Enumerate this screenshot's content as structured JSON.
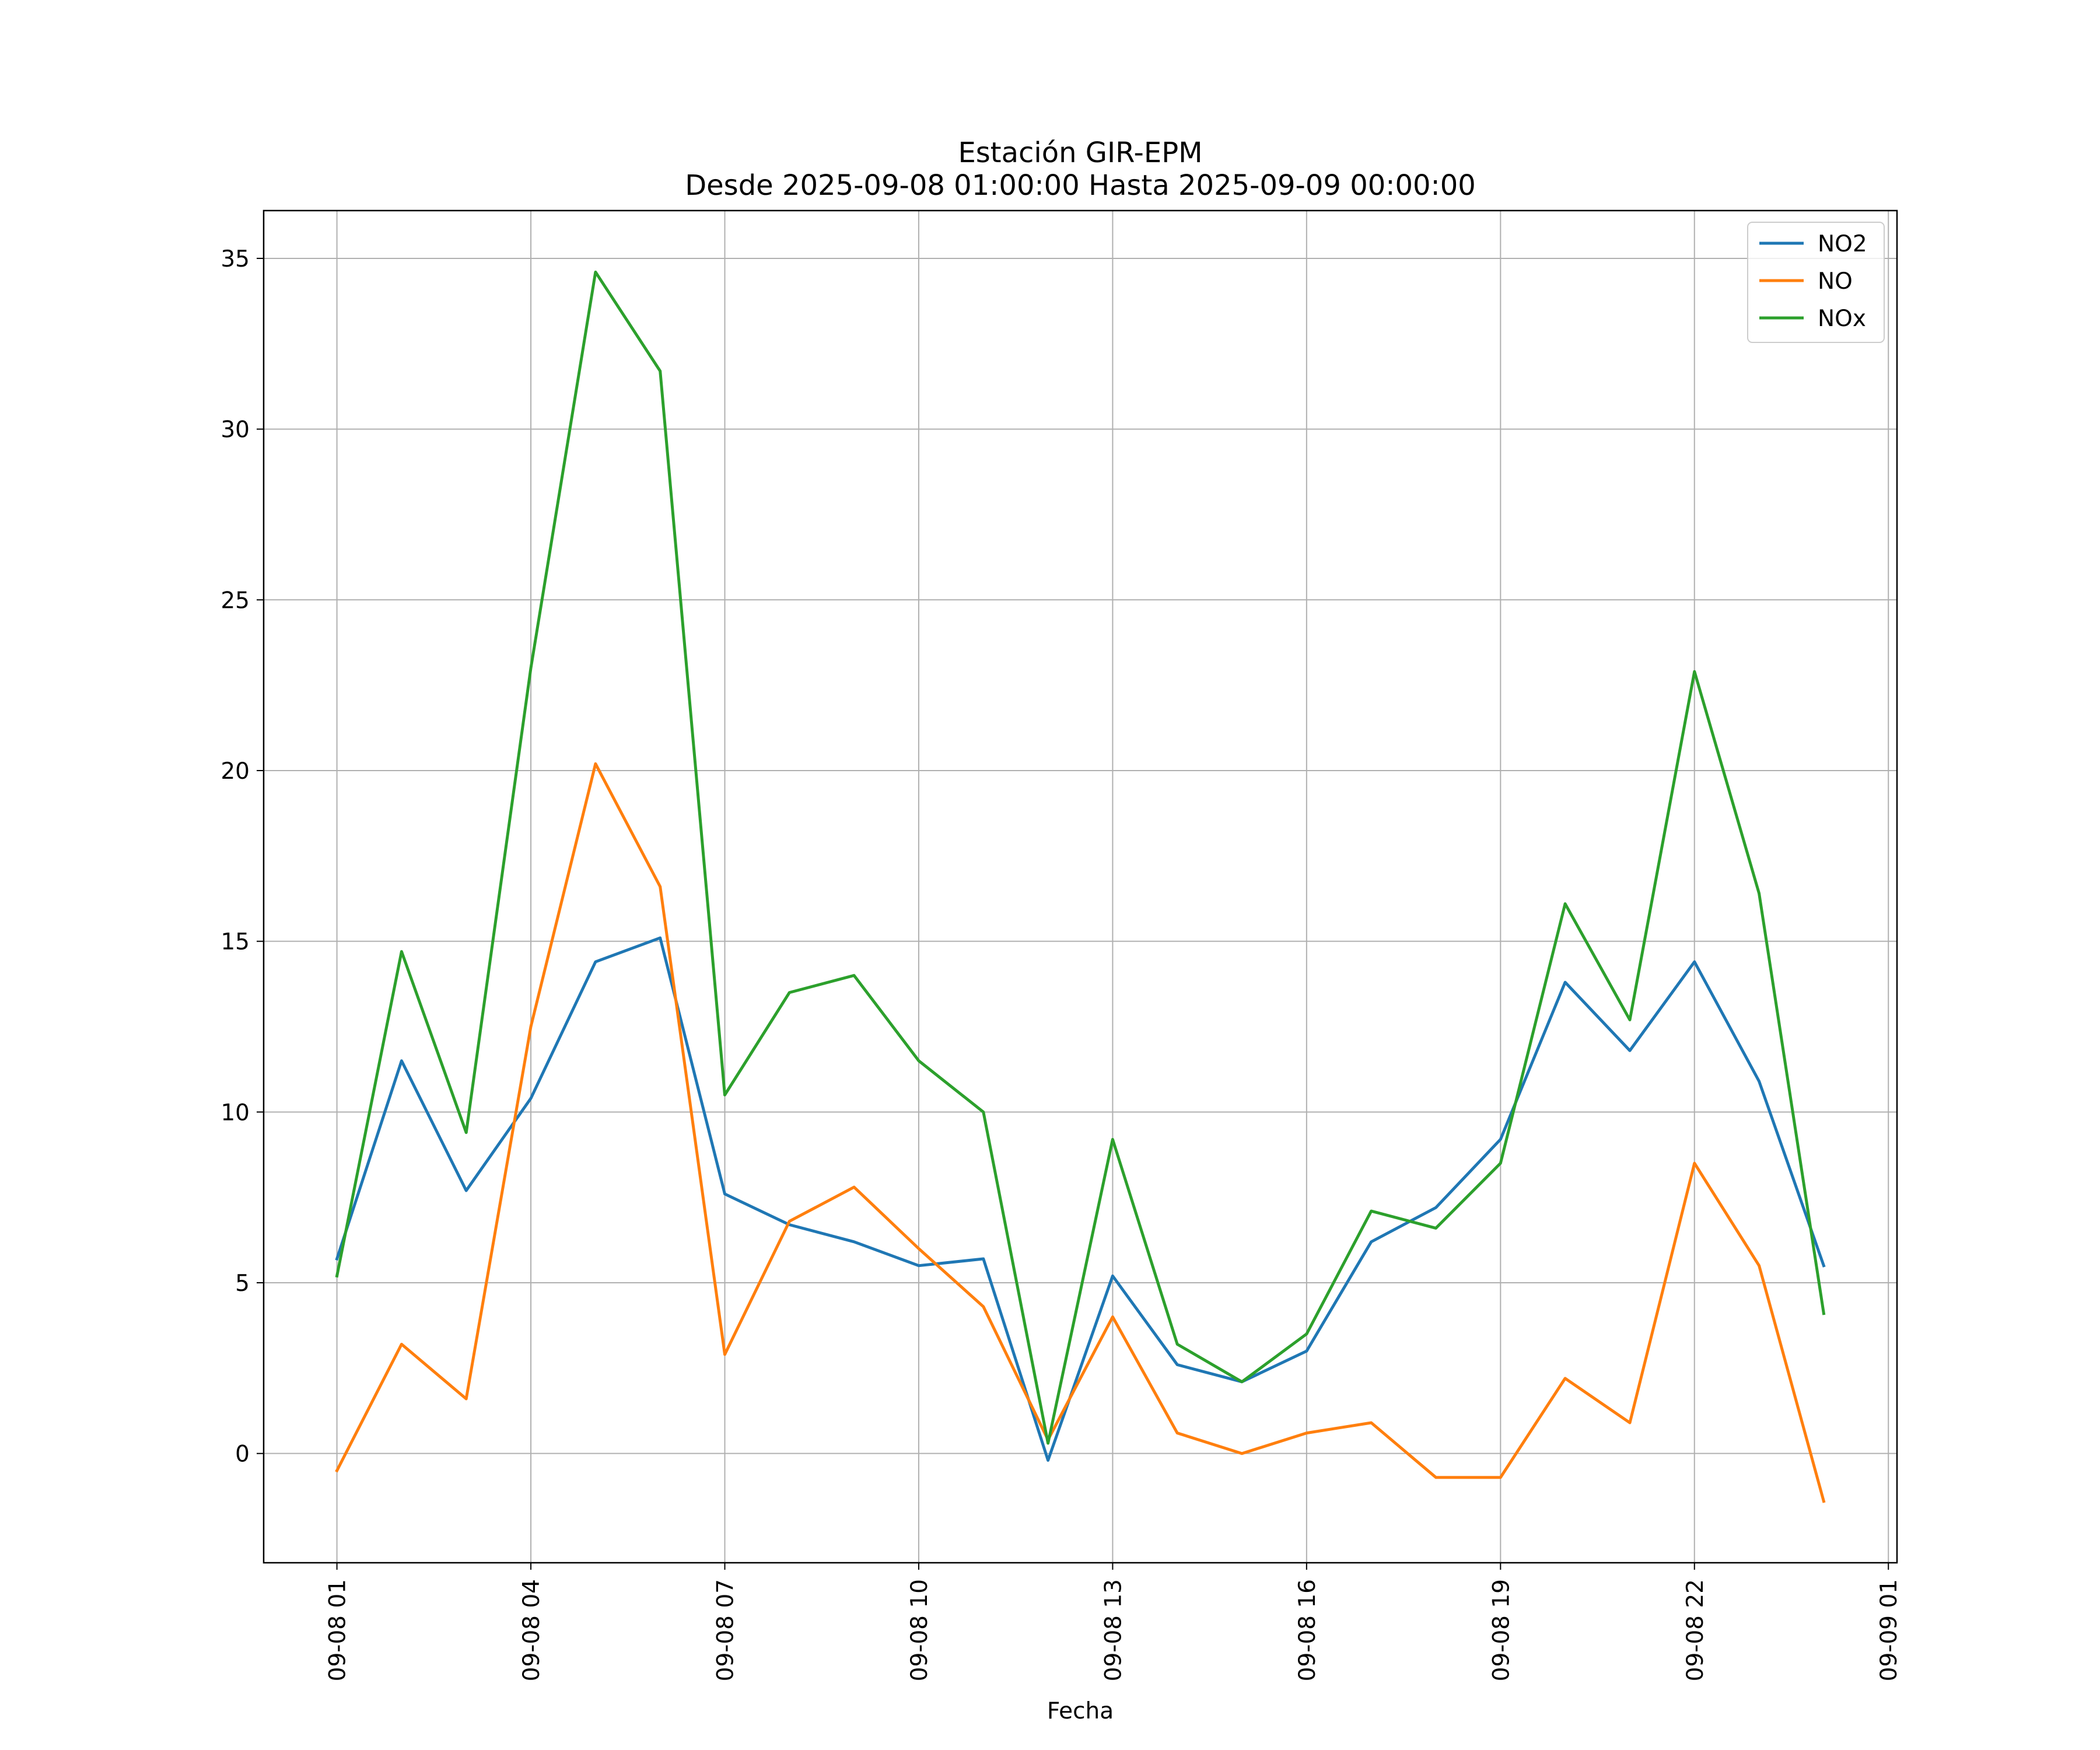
{
  "chart_data": {
    "type": "line",
    "title": "Estación GIR-EPM",
    "subtitle": "Desde 2025-09-08 01:00:00 Hasta 2025-09-09 00:00:00",
    "xlabel": "Fecha",
    "ylabel": "",
    "x": [
      "2025-09-08 01:00",
      "2025-09-08 02:00",
      "2025-09-08 03:00",
      "2025-09-08 04:00",
      "2025-09-08 05:00",
      "2025-09-08 06:00",
      "2025-09-08 07:00",
      "2025-09-08 08:00",
      "2025-09-08 09:00",
      "2025-09-08 10:00",
      "2025-09-08 11:00",
      "2025-09-08 12:00",
      "2025-09-08 13:00",
      "2025-09-08 14:00",
      "2025-09-08 15:00",
      "2025-09-08 16:00",
      "2025-09-08 17:00",
      "2025-09-08 18:00",
      "2025-09-08 19:00",
      "2025-09-08 20:00",
      "2025-09-08 21:00",
      "2025-09-08 22:00",
      "2025-09-08 23:00",
      "2025-09-09 00:00"
    ],
    "xlim": [
      "2025-09-07 23:52",
      "2025-09-09 01:08"
    ],
    "xticks": [
      "09-08 01",
      "09-08 04",
      "09-08 07",
      "09-08 10",
      "09-08 13",
      "09-08 16",
      "09-08 19",
      "09-08 22",
      "09-09 01"
    ],
    "ylim": [
      -3.2,
      36.4
    ],
    "yticks": [
      0,
      5,
      10,
      15,
      20,
      25,
      30,
      35
    ],
    "grid": true,
    "legend_position": "top-right",
    "series": [
      {
        "name": "NO2",
        "color": "#1f77b4",
        "values": [
          5.7,
          11.5,
          7.7,
          10.4,
          14.4,
          15.1,
          7.6,
          6.7,
          6.2,
          5.5,
          5.7,
          -0.2,
          5.2,
          2.6,
          2.1,
          3.0,
          6.2,
          7.2,
          9.2,
          13.8,
          11.8,
          14.4,
          10.9,
          5.5
        ]
      },
      {
        "name": "NO",
        "color": "#ff7f0e",
        "values": [
          -0.5,
          3.2,
          1.6,
          12.5,
          20.2,
          16.6,
          2.9,
          6.8,
          7.8,
          6.0,
          4.3,
          0.4,
          4.0,
          0.6,
          0.0,
          0.6,
          0.9,
          -0.7,
          -0.7,
          2.2,
          0.9,
          8.5,
          5.5,
          -1.4
        ]
      },
      {
        "name": "NOx",
        "color": "#2ca02c",
        "values": [
          5.2,
          14.7,
          9.4,
          23.0,
          34.6,
          31.7,
          10.5,
          13.5,
          14.0,
          11.5,
          10.0,
          0.3,
          9.2,
          3.2,
          2.1,
          3.5,
          7.1,
          6.6,
          8.5,
          16.1,
          12.7,
          22.9,
          16.4,
          4.1
        ]
      }
    ]
  }
}
